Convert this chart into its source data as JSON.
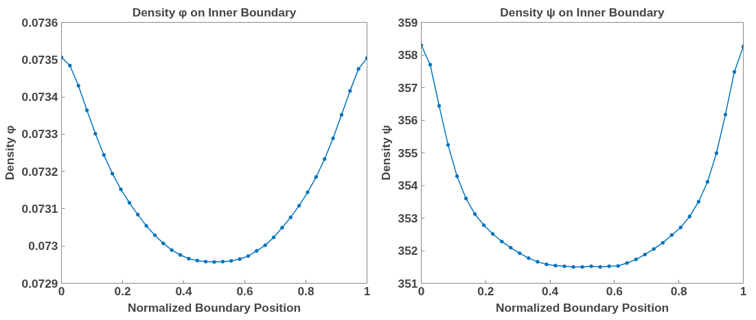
{
  "chart_data": [
    {
      "type": "line",
      "title": "Density φ on Inner Boundary",
      "xlabel": "Normalized Boundary Position",
      "ylabel": "Density φ",
      "x": [
        0,
        0.02778,
        0.05556,
        0.08333,
        0.11111,
        0.13889,
        0.16667,
        0.19444,
        0.22222,
        0.25,
        0.27778,
        0.30556,
        0.33333,
        0.36111,
        0.38889,
        0.41667,
        0.44444,
        0.47222,
        0.5,
        0.52778,
        0.55556,
        0.58333,
        0.61111,
        0.63889,
        0.66667,
        0.69444,
        0.72222,
        0.75,
        0.77778,
        0.80556,
        0.83333,
        0.86111,
        0.88889,
        0.91667,
        0.94444,
        0.97222,
        1
      ],
      "series": [
        {
          "color": "#0072bd",
          "values": [
            0.073506,
            0.073484,
            0.07343,
            0.073364,
            0.073301,
            0.073244,
            0.073194,
            0.073152,
            0.073116,
            0.073084,
            0.073054,
            0.073029,
            0.073007,
            0.072989,
            0.072976,
            0.072966,
            0.072961,
            0.072958,
            0.072957,
            0.072958,
            0.07296,
            0.072965,
            0.072973,
            0.072987,
            0.073002,
            0.073023,
            0.073049,
            0.073077,
            0.073108,
            0.073144,
            0.073185,
            0.073233,
            0.073289,
            0.073352,
            0.073416,
            0.073475,
            0.073504
          ]
        }
      ],
      "xlim": [
        0,
        1
      ],
      "xticks": [
        0,
        0.2,
        0.4,
        0.6,
        0.8,
        1
      ],
      "ylim": [
        0.0729,
        0.0736
      ],
      "yticks": [
        0.0729,
        0.073,
        0.0731,
        0.0732,
        0.0733,
        0.0734,
        0.0735,
        0.0736
      ],
      "marker": "circle",
      "line_style": "solid",
      "grid": false
    },
    {
      "type": "line",
      "title": "Density ψ on Inner Boundary",
      "xlabel": "Normalized Boundary Position",
      "ylabel": "Density ψ",
      "x": [
        0,
        0.02778,
        0.05556,
        0.08333,
        0.11111,
        0.13889,
        0.16667,
        0.19444,
        0.22222,
        0.25,
        0.27778,
        0.30556,
        0.33333,
        0.36111,
        0.38889,
        0.41667,
        0.44444,
        0.47222,
        0.5,
        0.52778,
        0.55556,
        0.58333,
        0.61111,
        0.63889,
        0.66667,
        0.69444,
        0.72222,
        0.75,
        0.77778,
        0.80556,
        0.83333,
        0.86111,
        0.88889,
        0.91667,
        0.94444,
        0.97222,
        1
      ],
      "series": [
        {
          "color": "#0072bd",
          "values": [
            358.3,
            357.7,
            356.44,
            355.24,
            354.28,
            353.6,
            353.12,
            352.78,
            352.51,
            352.28,
            352.09,
            351.92,
            351.77,
            351.66,
            351.58,
            351.54,
            351.52,
            351.5,
            351.5,
            351.52,
            351.5,
            351.52,
            351.53,
            351.62,
            351.73,
            351.88,
            352.05,
            352.24,
            352.48,
            352.71,
            353.05,
            353.5,
            354.11,
            354.99,
            356.17,
            357.48,
            358.26
          ]
        }
      ],
      "xlim": [
        0,
        1
      ],
      "xticks": [
        0,
        0.2,
        0.4,
        0.6,
        0.8,
        1
      ],
      "ylim": [
        351,
        359
      ],
      "yticks": [
        351,
        352,
        353,
        354,
        355,
        356,
        357,
        358,
        359
      ],
      "marker": "circle",
      "line_style": "solid",
      "grid": false
    }
  ]
}
